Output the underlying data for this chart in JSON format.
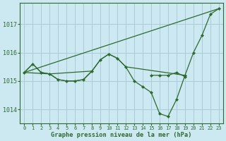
{
  "title": "Graphe pression niveau de la mer (hPa)",
  "bg_color": "#cce8f0",
  "line_color": "#2d6a2d",
  "grid_color": "#a8ccd8",
  "ylim": [
    1013.5,
    1017.75
  ],
  "yticks": [
    1014,
    1015,
    1016,
    1017
  ],
  "xlim": [
    -0.5,
    23.5
  ],
  "line_diagonal": {
    "x": [
      0,
      23
    ],
    "y": [
      1015.3,
      1017.55
    ]
  },
  "line_wavy": {
    "x": [
      0,
      1,
      2,
      3,
      4,
      5,
      6,
      7,
      8,
      9,
      10,
      11,
      12,
      13,
      14,
      15,
      16,
      17,
      18,
      19,
      20,
      21,
      22,
      23
    ],
    "y": [
      1015.3,
      1015.6,
      1015.3,
      1015.25,
      1015.05,
      1015.0,
      1015.0,
      1015.05,
      1015.35,
      1015.75,
      1015.95,
      1015.8,
      1015.5,
      1015.0,
      1014.8,
      1014.6,
      1013.85,
      1013.75,
      1014.35,
      1015.2,
      1016.0,
      1016.6,
      1017.35,
      1017.55
    ]
  },
  "line_flat": {
    "x": [
      0,
      1,
      2,
      3,
      4,
      5,
      6,
      7,
      8,
      15,
      16,
      17,
      18,
      19
    ],
    "y": [
      1015.3,
      1015.6,
      1015.3,
      1015.25,
      1015.05,
      1015.0,
      1015.0,
      1015.05,
      1015.35,
      1015.2,
      1015.2,
      1015.2,
      1015.3,
      1015.15
    ]
  },
  "line_mid": {
    "x": [
      0,
      3,
      8,
      9,
      10,
      11,
      12,
      19
    ],
    "y": [
      1015.3,
      1015.25,
      1015.35,
      1015.75,
      1015.95,
      1015.8,
      1015.5,
      1015.2
    ]
  }
}
